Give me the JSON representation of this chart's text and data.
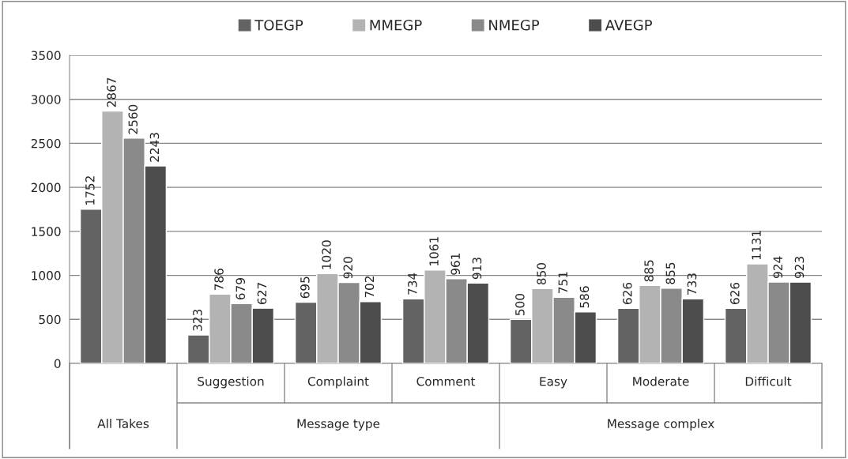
{
  "chart_data": {
    "type": "bar",
    "categories": [
      null,
      "Suggestion",
      "Complaint",
      "Comment",
      "Easy",
      "Moderate",
      "Difficult"
    ],
    "series": [
      {
        "name": "TOEGP",
        "color": "#636363",
        "values": [
          1752,
          323,
          695,
          734,
          500,
          626,
          626
        ]
      },
      {
        "name": "MMEGP",
        "color": "#b3b3b3",
        "values": [
          2867,
          786,
          1020,
          1061,
          850,
          885,
          1131
        ]
      },
      {
        "name": "NMEGP",
        "color": "#8a8a8a",
        "values": [
          2560,
          679,
          920,
          961,
          751,
          855,
          924
        ]
      },
      {
        "name": "AVEGP",
        "color": "#4d4d4d",
        "values": [
          2243,
          627,
          702,
          913,
          586,
          733,
          923
        ]
      }
    ],
    "annotations": [
      "All Takes",
      "Message type",
      "Message complex"
    ],
    "ylim": [
      0,
      3500
    ],
    "yticks": [
      0,
      500,
      1000,
      1500,
      2000,
      2500,
      3000,
      3500
    ],
    "grid": "y",
    "legend": "top",
    "data_labels": true
  }
}
